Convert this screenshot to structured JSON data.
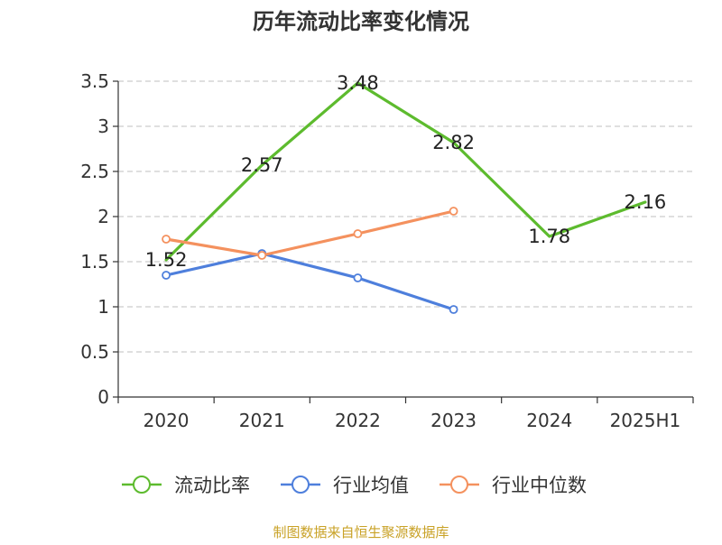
{
  "chart_data": {
    "type": "line",
    "title": "历年流动比率变化情况",
    "xlabel": "",
    "ylabel": "",
    "categories": [
      "2020",
      "2021",
      "2022",
      "2023",
      "2024",
      "2025H1"
    ],
    "ylim": [
      0,
      3.5
    ],
    "yticks": [
      "0",
      "0.5",
      "1",
      "1.5",
      "2",
      "2.5",
      "3",
      "3.5"
    ],
    "grid": true,
    "legend_position": "bottom",
    "series": [
      {
        "name": "流动比率",
        "color": "#5dbb2e",
        "values": [
          1.52,
          2.57,
          3.48,
          2.82,
          1.78,
          2.16
        ],
        "labels": [
          "1.52",
          "2.57",
          "3.48",
          "2.82",
          "1.78",
          "2.16"
        ],
        "show_markers": false,
        "show_labels": true
      },
      {
        "name": "行业均值",
        "color": "#4e7fdc",
        "values": [
          1.35,
          1.59,
          1.32,
          0.97,
          null,
          null
        ],
        "show_markers": true,
        "show_labels": false
      },
      {
        "name": "行业中位数",
        "color": "#f4915e",
        "values": [
          1.75,
          1.57,
          1.81,
          2.06,
          null,
          null
        ],
        "show_markers": true,
        "show_labels": false
      }
    ]
  },
  "footer": {
    "source": "制图数据来自恒生聚源数据库",
    "color": "#c9a227"
  }
}
